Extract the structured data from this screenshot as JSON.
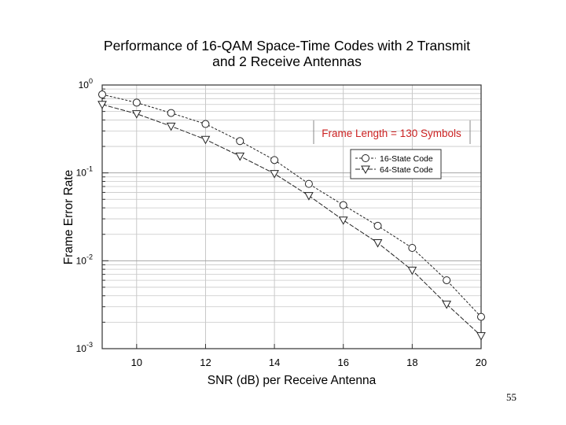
{
  "chart_data": {
    "type": "line",
    "title": "Performance of 16-QAM Space-Time Codes with 2 Transmit and 2 Receive Antennas",
    "title_lines": [
      "Performance of 16-QAM Space-Time Codes with 2 Transmit",
      "and 2 Receive Antennas"
    ],
    "xlabel": "SNR (dB) per Receive Antenna",
    "ylabel": "Frame Error Rate",
    "xlim": [
      9,
      20
    ],
    "ylim": [
      0.001,
      1
    ],
    "yscale": "log",
    "xticks": [
      10,
      12,
      14,
      16,
      18,
      20
    ],
    "yticks": [
      {
        "value": 1,
        "base": "10",
        "exp": "0"
      },
      {
        "value": 0.1,
        "base": "10",
        "exp": "-1"
      },
      {
        "value": 0.01,
        "base": "10",
        "exp": "-2"
      },
      {
        "value": 0.001,
        "base": "10",
        "exp": "-3"
      }
    ],
    "grid": true,
    "annotation": {
      "text": "Frame Length = 130 Symbols",
      "color": "#cc2222"
    },
    "legend_position": "right",
    "series": [
      {
        "name": "16-State Code",
        "marker": "circle",
        "x": [
          9,
          10,
          11,
          12,
          13,
          14,
          15,
          16,
          17,
          18,
          19,
          20
        ],
        "values": [
          0.78,
          0.63,
          0.48,
          0.36,
          0.23,
          0.14,
          0.075,
          0.043,
          0.025,
          0.014,
          0.006,
          0.0023
        ]
      },
      {
        "name": "64-State Code",
        "marker": "triangle-down",
        "x": [
          9,
          10,
          11,
          12,
          13,
          14,
          15,
          16,
          17,
          18,
          19,
          20
        ],
        "values": [
          0.6,
          0.47,
          0.34,
          0.24,
          0.155,
          0.098,
          0.055,
          0.029,
          0.016,
          0.0078,
          0.0032,
          0.0014
        ]
      }
    ]
  },
  "page_number": "55"
}
